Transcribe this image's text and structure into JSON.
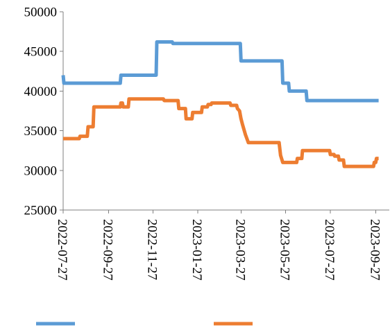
{
  "chart_data": {
    "type": "line",
    "title": "",
    "xlabel": "",
    "ylabel": "",
    "ylim": [
      25000,
      50000
    ],
    "yticks": [
      "25000",
      "30000",
      "35000",
      "40000",
      "45000",
      "50000"
    ],
    "xlim": [
      "2022-07-27",
      "2023-09-27"
    ],
    "xticks": [
      "2022-07-27",
      "2022-09-27",
      "2022-11-27",
      "2023-01-27",
      "2023-03-27",
      "2023-05-27",
      "2023-07-27",
      "2023-09-27"
    ],
    "grid": false,
    "legend": "bottom",
    "series": [
      {
        "color": "#5b9bd5",
        "points": [
          [
            "2022-07-27",
            42000
          ],
          [
            "2022-07-28",
            41000
          ],
          [
            "2022-10-13",
            41000
          ],
          [
            "2022-10-14",
            42000
          ],
          [
            "2022-12-01",
            42000
          ],
          [
            "2022-12-02",
            46200
          ],
          [
            "2022-12-23",
            46200
          ],
          [
            "2022-12-24",
            46000
          ],
          [
            "2023-03-26",
            46000
          ],
          [
            "2023-03-27",
            43800
          ],
          [
            "2023-05-22",
            43800
          ],
          [
            "2023-05-23",
            41000
          ],
          [
            "2023-05-31",
            41000
          ],
          [
            "2023-06-01",
            40000
          ],
          [
            "2023-06-24",
            40000
          ],
          [
            "2023-06-25",
            38800
          ],
          [
            "2023-10-01",
            38800
          ]
        ]
      },
      {
        "color": "#ed7d31",
        "points": [
          [
            "2022-07-27",
            34000
          ],
          [
            "2022-08-18",
            34000
          ],
          [
            "2022-08-19",
            34300
          ],
          [
            "2022-08-29",
            34300
          ],
          [
            "2022-08-30",
            35500
          ],
          [
            "2022-09-06",
            35500
          ],
          [
            "2022-09-07",
            38000
          ],
          [
            "2022-10-13",
            38000
          ],
          [
            "2022-10-14",
            38500
          ],
          [
            "2022-10-16",
            38500
          ],
          [
            "2022-10-17",
            38000
          ],
          [
            "2022-10-24",
            38000
          ],
          [
            "2022-10-25",
            39000
          ],
          [
            "2022-12-11",
            39000
          ],
          [
            "2022-12-12",
            38800
          ],
          [
            "2022-12-31",
            38800
          ],
          [
            "2023-01-01",
            37800
          ],
          [
            "2023-01-10",
            37800
          ],
          [
            "2023-01-11",
            36500
          ],
          [
            "2023-01-19",
            36500
          ],
          [
            "2023-01-20",
            37300
          ],
          [
            "2023-02-01",
            37300
          ],
          [
            "2023-02-02",
            38000
          ],
          [
            "2023-02-09",
            38000
          ],
          [
            "2023-02-10",
            38300
          ],
          [
            "2023-02-14",
            38300
          ],
          [
            "2023-02-15",
            38500
          ],
          [
            "2023-03-12",
            38500
          ],
          [
            "2023-03-13",
            38200
          ],
          [
            "2023-03-21",
            38200
          ],
          [
            "2023-03-22",
            37800
          ],
          [
            "2023-03-25",
            37500
          ],
          [
            "2023-03-27",
            36500
          ],
          [
            "2023-03-29",
            35800
          ],
          [
            "2023-04-02",
            34500
          ],
          [
            "2023-04-06",
            33500
          ],
          [
            "2023-05-18",
            33500
          ],
          [
            "2023-05-20",
            31900
          ],
          [
            "2023-05-23",
            31000
          ],
          [
            "2023-06-11",
            31000
          ],
          [
            "2023-06-12",
            31500
          ],
          [
            "2023-06-18",
            31500
          ],
          [
            "2023-06-19",
            32500
          ],
          [
            "2023-07-26",
            32500
          ],
          [
            "2023-07-27",
            32000
          ],
          [
            "2023-08-01",
            32000
          ],
          [
            "2023-08-02",
            31800
          ],
          [
            "2023-08-07",
            31800
          ],
          [
            "2023-08-08",
            31300
          ],
          [
            "2023-08-14",
            31300
          ],
          [
            "2023-08-15",
            30500
          ],
          [
            "2023-09-24",
            30500
          ],
          [
            "2023-09-25",
            31000
          ],
          [
            "2023-09-27",
            31000
          ],
          [
            "2023-09-28",
            31500
          ],
          [
            "2023-10-01",
            31500
          ]
        ]
      }
    ]
  }
}
